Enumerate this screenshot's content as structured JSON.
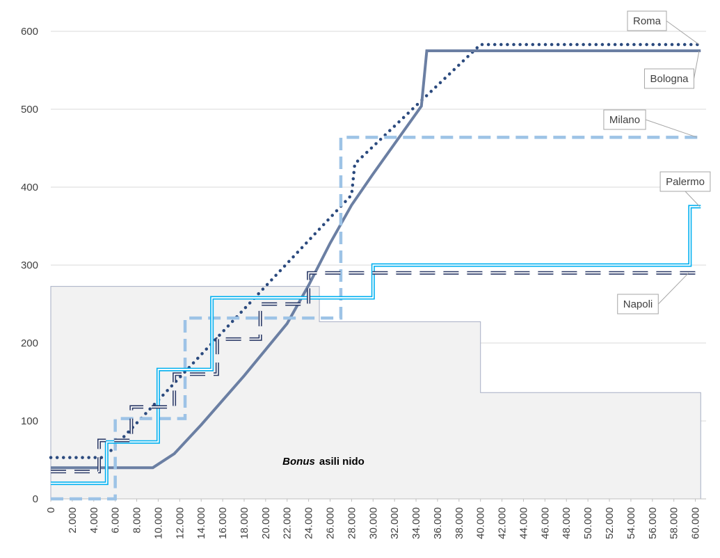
{
  "chart_data": {
    "type": "line",
    "annotation": [
      "Bonus",
      "asili nido"
    ],
    "area": {
      "color": "#f2f2f2",
      "edge": "#a6aec4",
      "x": [
        0,
        25000,
        25000,
        40000,
        40000,
        60500
      ],
      "values": [
        272.7,
        272.7,
        227.3,
        227.3,
        136.4,
        136.4
      ]
    },
    "series": [
      {
        "name": "Roma",
        "color": "#2b4a7e",
        "style": "dotted",
        "x": [
          0,
          5000,
          6000,
          28000,
          28300,
          40000,
          60500
        ],
        "values": [
          53,
          53,
          68,
          390,
          430,
          583,
          583
        ]
      },
      {
        "name": "Bologna",
        "color": "#6b7fa3",
        "style": "solid",
        "x": [
          0,
          9500,
          11500,
          14000,
          18000,
          22000,
          24000,
          26000,
          28000,
          30000,
          34500,
          35000,
          60500
        ],
        "values": [
          40,
          40,
          58,
          95,
          158,
          225,
          274,
          328,
          377,
          417,
          504,
          575,
          575
        ]
      },
      {
        "name": "Milano",
        "color": "#9dc3e6",
        "style": "dashed",
        "x": [
          0,
          6000,
          6000,
          12500,
          12500,
          27000,
          27000,
          60500
        ],
        "values": [
          0,
          0,
          103,
          103,
          232,
          232,
          464,
          464
        ]
      },
      {
        "name": "Palermo",
        "color": "#00b0f0",
        "style": "double",
        "x": [
          0,
          5200,
          5200,
          10000,
          10000,
          15000,
          15000,
          30000,
          30000,
          59500,
          59500,
          60500
        ],
        "values": [
          20,
          20,
          73,
          73,
          166,
          166,
          258,
          258,
          300,
          300,
          375,
          375
        ]
      },
      {
        "name": "Napoli",
        "color": "#2b3a67",
        "style": "double-dashed",
        "x": [
          0,
          4500,
          4500,
          7500,
          7500,
          11500,
          11500,
          15500,
          15500,
          19500,
          19500,
          24000,
          24000,
          60500
        ],
        "values": [
          35,
          35,
          75,
          75,
          118,
          118,
          160,
          160,
          205,
          205,
          250,
          250,
          290,
          290
        ]
      }
    ],
    "xlim": [
      0,
      61000
    ],
    "xticks": [
      0,
      {
        "value": 2000,
        "label": "2.000"
      },
      {
        "value": 4000,
        "label": "4.000"
      },
      {
        "value": 6000,
        "label": "6.000"
      },
      {
        "value": 8000,
        "label": "8.000"
      },
      {
        "value": 10000,
        "label": "10.000"
      },
      {
        "value": 12000,
        "label": "12.000"
      },
      {
        "value": 14000,
        "label": "14.000"
      },
      {
        "value": 16000,
        "label": "16.000"
      },
      {
        "value": 18000,
        "label": "18.000"
      },
      {
        "value": 20000,
        "label": "20.000"
      },
      {
        "value": 22000,
        "label": "22.000"
      },
      {
        "value": 24000,
        "label": "24.000"
      },
      {
        "value": 26000,
        "label": "26.000"
      },
      {
        "value": 28000,
        "label": "28.000"
      },
      {
        "value": 30000,
        "label": "30.000"
      },
      {
        "value": 32000,
        "label": "32.000"
      },
      {
        "value": 34000,
        "label": "34.000"
      },
      {
        "value": 36000,
        "label": "36.000"
      },
      {
        "value": 38000,
        "label": "38.000"
      },
      {
        "value": 40000,
        "label": "40.000"
      },
      {
        "value": 42000,
        "label": "42.000"
      },
      {
        "value": 44000,
        "label": "44.000"
      },
      {
        "value": 46000,
        "label": "46.000"
      },
      {
        "value": 48000,
        "label": "48.000"
      },
      {
        "value": 50000,
        "label": "50.000"
      },
      {
        "value": 52000,
        "label": "52.000"
      },
      {
        "value": 54000,
        "label": "54.000"
      },
      {
        "value": 56000,
        "label": "56.000"
      },
      {
        "value": 58000,
        "label": "58.000"
      },
      {
        "value": 60000,
        "label": "60.000"
      }
    ],
    "ylim": [
      0,
      600
    ],
    "yticks": [
      0,
      100,
      200,
      300,
      400,
      500,
      600
    ],
    "grid": true
  }
}
